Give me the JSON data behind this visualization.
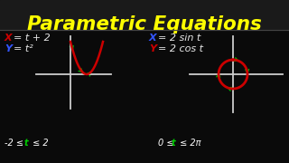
{
  "background_color": "#0a0a0a",
  "title": "Parametric Equations",
  "title_color": "#ffff00",
  "title_fontsize": 15.5,
  "left_eq1_x": "X",
  "left_eq1_rest": " = t + 2",
  "left_eq2_y": "Y",
  "left_eq2_rest": " = t²",
  "left_eq1_x_color": "#cc0000",
  "left_eq1_rest_color": "#e8e8e8",
  "left_eq2_y_color": "#3355ff",
  "left_eq2_rest_color": "#e8e8e8",
  "right_eq1_x": "X",
  "right_eq1_rest": " = 2 sin t",
  "right_eq2_y": "Y",
  "right_eq2_rest": " = 2 cos t",
  "right_eq1_x_color": "#3355ff",
  "right_eq1_rest_color": "#e8e8e8",
  "right_eq2_y_color": "#cc0000",
  "right_eq2_rest_color": "#e8e8e8",
  "left_range_pre": "-2 ≤ ",
  "left_range_t": "t",
  "left_range_post": " ≤ 2",
  "right_range_pre": "0 ≤ ",
  "right_range_t": "t",
  "right_range_post": " ≤ 2π",
  "range_color": "#ffffff",
  "range_t_color": "#00cc00",
  "parabola_color": "#cc0000",
  "circle_color": "#cc0000",
  "arrow_color": "#00bb00",
  "axis_color": "#cccccc",
  "separator_color": "#444444",
  "title_bg": "#1a1a1a"
}
